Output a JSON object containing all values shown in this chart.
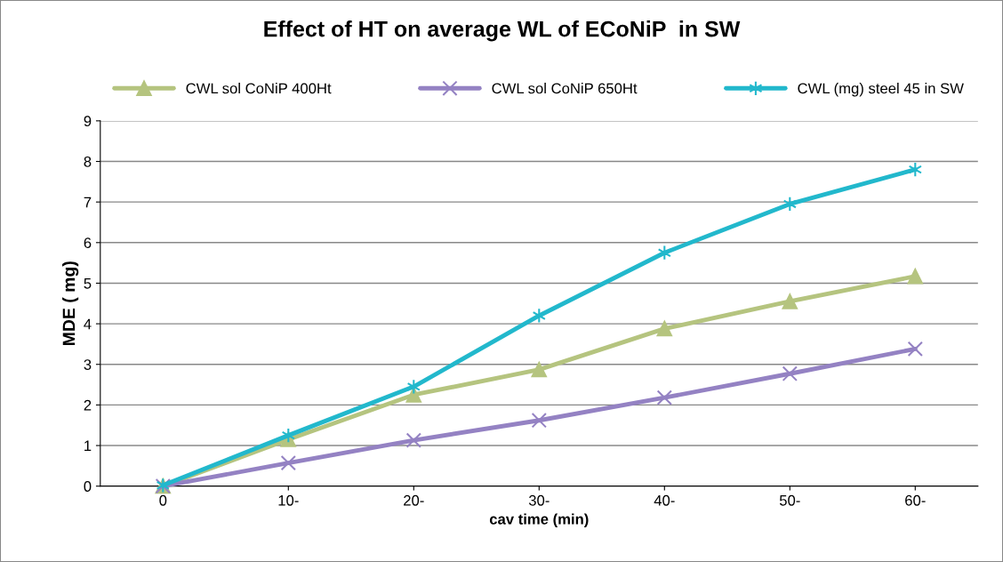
{
  "chart_data": {
    "type": "line",
    "title": "Effect of HT on average WL of ECoNiP  in SW",
    "xlabel": "cav time (min)",
    "ylabel": "MDE ( mg)",
    "categories": [
      "0",
      "10-",
      "20-",
      "30-",
      "40-",
      "50-",
      "60-"
    ],
    "series": [
      {
        "name": "CWL sol CoNiP 400Ht",
        "color": "#b5c47f",
        "marker": "triangle",
        "values": [
          0,
          1.15,
          2.25,
          2.87,
          3.88,
          4.55,
          5.17
        ]
      },
      {
        "name": "CWL sol CoNiP 650Ht",
        "color": "#9482c3",
        "marker": "cross",
        "values": [
          0,
          0.57,
          1.13,
          1.62,
          2.18,
          2.77,
          3.38
        ]
      },
      {
        "name": "CWL (mg) steel 45 in SW",
        "color": "#22b8cc",
        "marker": "cross",
        "values": [
          0.02,
          1.25,
          2.45,
          4.2,
          5.75,
          6.95,
          7.8
        ]
      }
    ],
    "ylim": [
      0,
      9
    ],
    "yticks": [
      0,
      1,
      2,
      3,
      4,
      5,
      6,
      7,
      8,
      9
    ],
    "grid": "y",
    "legend": "top",
    "line_style": "solid"
  }
}
